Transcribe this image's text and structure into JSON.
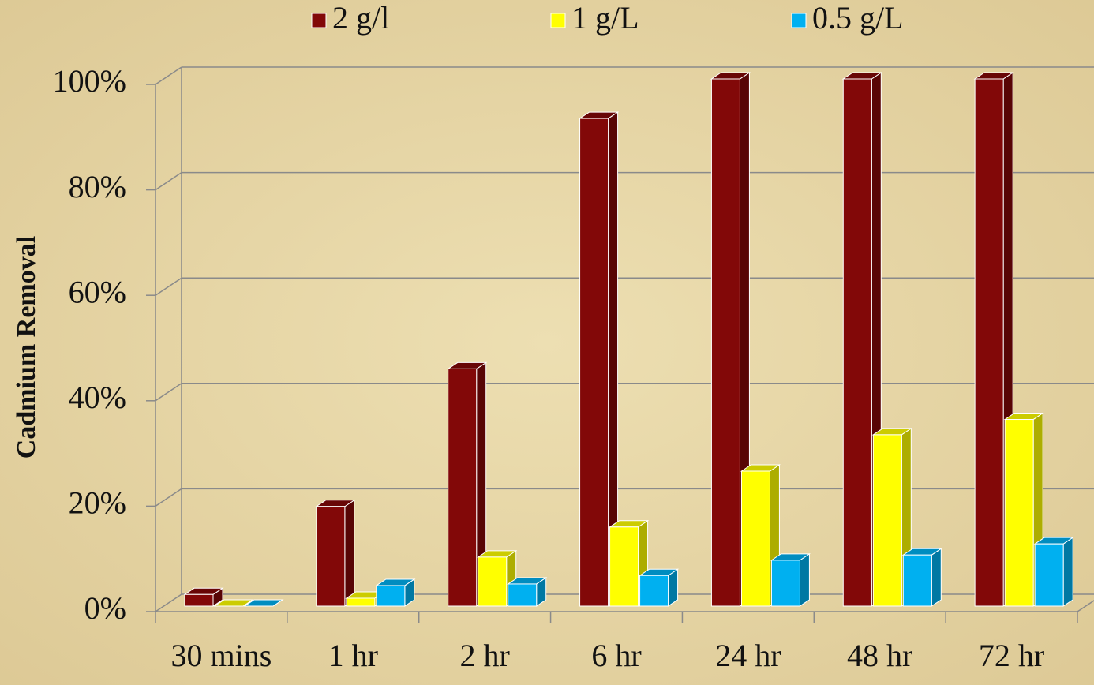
{
  "chart_data": {
    "type": "bar3d",
    "y_label": "Cadmium Removal",
    "categories": [
      "30 mins",
      "1 hr",
      "2 hr",
      "6 hr",
      "24 hr",
      "48 hr",
      "72 hr"
    ],
    "series": [
      {
        "name": "2 g/l",
        "color": "#820808",
        "values": [
          2.2,
          18.9,
          45,
          92.5,
          100,
          100,
          100
        ]
      },
      {
        "name": "1 g/L",
        "color": "#ffff00",
        "values": [
          0,
          1.5,
          9.3,
          15,
          25.6,
          32.5,
          35.4
        ]
      },
      {
        "name": "0.5 g/L",
        "color": "#00b0f0",
        "values": [
          0,
          3.9,
          4.2,
          5.8,
          8.7,
          9.7,
          11.8
        ]
      }
    ],
    "ylim": [
      0,
      100
    ],
    "yticks": [
      {
        "value": 0,
        "label": "0%"
      },
      {
        "value": 20,
        "label": "20%"
      },
      {
        "value": 40,
        "label": "40%"
      },
      {
        "value": 60,
        "label": "60%"
      },
      {
        "value": 80,
        "label": "80%"
      },
      {
        "value": 100,
        "label": "100%"
      }
    ],
    "grid": true,
    "legend": "top"
  }
}
